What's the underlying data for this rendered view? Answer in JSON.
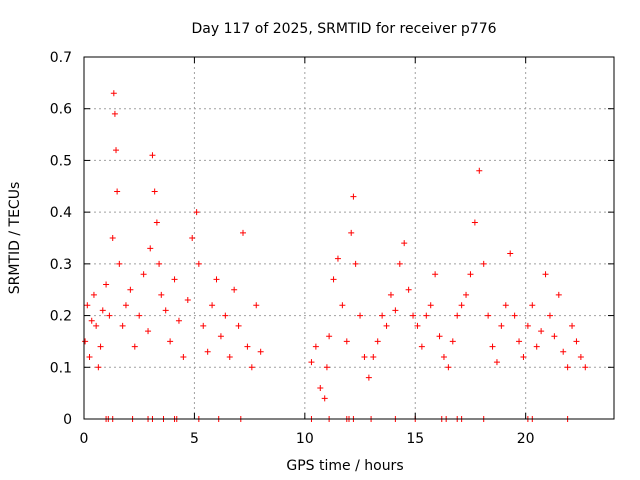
{
  "chart_data": {
    "type": "scatter",
    "title": "Day 117 of 2025, SRMTID for receiver p776",
    "xlabel": "GPS time / hours",
    "ylabel": "SRMTID / TECUs",
    "xlim": [
      0,
      24
    ],
    "ylim": [
      0,
      0.7
    ],
    "xticks": [
      0,
      5,
      10,
      15,
      20
    ],
    "xtick_labels": [
      "0",
      "5",
      "10",
      "15",
      "20"
    ],
    "yticks": [
      0,
      0.1,
      0.2,
      0.3,
      0.4,
      0.5,
      0.6,
      0.7
    ],
    "ytick_labels": [
      "0",
      "0.1",
      "0.2",
      "0.3",
      "0.4",
      "0.5",
      "0.6",
      "0.7"
    ],
    "grid": true,
    "marker": "+",
    "color": "#ff0000",
    "series": [
      {
        "name": "SRMTID",
        "x": [
          0.05,
          0.15,
          0.25,
          0.35,
          0.45,
          0.55,
          0.65,
          0.75,
          0.85,
          1.0,
          1.15,
          1.3,
          1.35,
          1.4,
          1.45,
          1.5,
          1.6,
          1.75,
          1.9,
          2.1,
          2.3,
          2.5,
          2.7,
          2.9,
          3.0,
          3.1,
          3.2,
          3.3,
          3.4,
          3.5,
          3.7,
          3.9,
          4.1,
          4.3,
          4.5,
          4.7,
          4.9,
          5.1,
          5.2,
          5.4,
          5.6,
          5.8,
          6.0,
          6.2,
          6.4,
          6.6,
          6.8,
          7.0,
          7.2,
          7.4,
          7.6,
          7.8,
          8.0,
          10.3,
          10.5,
          10.7,
          10.9,
          11.0,
          11.1,
          11.3,
          11.5,
          11.7,
          11.9,
          12.1,
          12.2,
          12.3,
          12.5,
          12.7,
          12.9,
          13.1,
          13.3,
          13.5,
          13.7,
          13.9,
          14.1,
          14.3,
          14.5,
          14.7,
          14.9,
          15.1,
          15.3,
          15.5,
          15.7,
          15.9,
          16.1,
          16.3,
          16.5,
          16.7,
          16.9,
          17.1,
          17.3,
          17.5,
          17.7,
          17.9,
          18.1,
          18.3,
          18.5,
          18.7,
          18.9,
          19.1,
          19.3,
          19.5,
          19.7,
          19.9,
          20.1,
          20.3,
          20.5,
          20.7,
          20.9,
          21.1,
          21.3,
          21.5,
          21.7,
          21.9,
          22.1,
          22.3,
          22.5,
          22.7
        ],
        "y": [
          0.15,
          0.22,
          0.12,
          0.19,
          0.24,
          0.18,
          0.1,
          0.14,
          0.21,
          0.26,
          0.2,
          0.35,
          0.63,
          0.59,
          0.52,
          0.44,
          0.3,
          0.18,
          0.22,
          0.25,
          0.14,
          0.2,
          0.28,
          0.17,
          0.33,
          0.51,
          0.44,
          0.38,
          0.3,
          0.24,
          0.21,
          0.15,
          0.27,
          0.19,
          0.12,
          0.23,
          0.35,
          0.4,
          0.3,
          0.18,
          0.13,
          0.22,
          0.27,
          0.16,
          0.2,
          0.12,
          0.25,
          0.18,
          0.36,
          0.14,
          0.1,
          0.22,
          0.13,
          0.11,
          0.14,
          0.06,
          0.04,
          0.1,
          0.16,
          0.27,
          0.31,
          0.22,
          0.15,
          0.36,
          0.43,
          0.3,
          0.2,
          0.12,
          0.08,
          0.12,
          0.15,
          0.2,
          0.18,
          0.24,
          0.21,
          0.3,
          0.34,
          0.25,
          0.2,
          0.18,
          0.14,
          0.2,
          0.22,
          0.28,
          0.16,
          0.12,
          0.1,
          0.15,
          0.2,
          0.22,
          0.24,
          0.28,
          0.38,
          0.48,
          0.3,
          0.2,
          0.14,
          0.11,
          0.18,
          0.22,
          0.32,
          0.2,
          0.15,
          0.12,
          0.18,
          0.22,
          0.14,
          0.17,
          0.28,
          0.2,
          0.16,
          0.24,
          0.13,
          0.1,
          0.18,
          0.15,
          0.12,
          0.1
        ]
      },
      {
        "name": "zero-value markers",
        "x": [
          1.0,
          1.1,
          1.3,
          2.2,
          2.9,
          3.1,
          3.6,
          4.1,
          4.2,
          5.2,
          6.1,
          7.1,
          10.3,
          11.1,
          11.9,
          12.0,
          12.2,
          13.0,
          14.1,
          15.0,
          16.2,
          16.4,
          16.9,
          17.1,
          18.1,
          20.1,
          20.3,
          21.9
        ],
        "y": [
          0,
          0,
          0,
          0,
          0,
          0,
          0,
          0,
          0,
          0,
          0,
          0,
          0,
          0,
          0,
          0,
          0,
          0,
          0,
          0,
          0,
          0,
          0,
          0,
          0,
          0,
          0,
          0
        ]
      }
    ]
  }
}
